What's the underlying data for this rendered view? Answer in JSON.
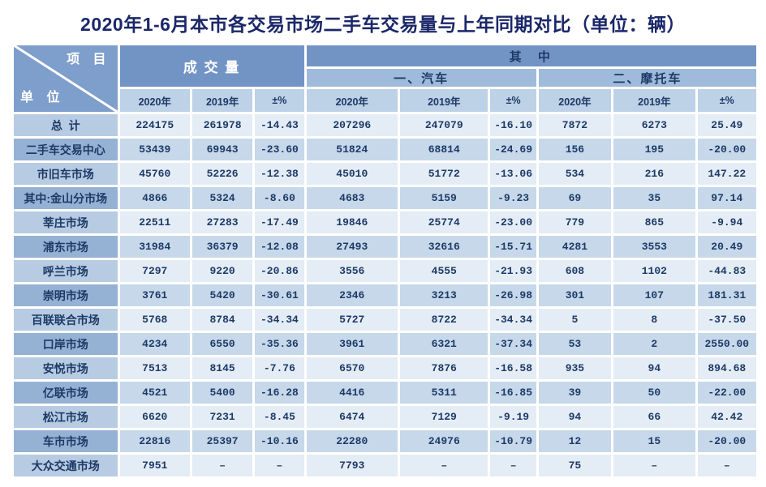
{
  "title": "2020年1-6月本市各交易市场二手车交易量与上年同期对比（单位：辆）",
  "colors": {
    "title_text": "#1b2769",
    "cell_text": "#1d3a66",
    "band_dark": "#7294c4",
    "band_mid": "#9fbada",
    "band_light": "#bdd1e7",
    "corner_bg": "#7e9ecb",
    "label_light": "#b7cbe3",
    "label_dark": "#95b2d5",
    "cell_light": "#e4ecf5",
    "cell_mid": "#c6d8ea",
    "gridline": "#ffffff"
  },
  "table": {
    "corner": {
      "top_right": "项 目",
      "bottom_left": "单 位"
    },
    "group_headers": {
      "volume": "成 交 量",
      "of_which": "其  中",
      "cars": "一、汽车",
      "motorcycles": "二、摩托车"
    },
    "year_headers": [
      "2020年",
      "2019年",
      "±%",
      "2020年",
      "2019年",
      "±%",
      "2020年",
      "2019年",
      "±%"
    ],
    "rows": [
      {
        "label": "总  计",
        "values": [
          "224175",
          "261978",
          "-14.43",
          "207296",
          "247079",
          "-16.10",
          "7872",
          "6273",
          "25.49"
        ]
      },
      {
        "label": "二手车交易中心",
        "values": [
          "53439",
          "69943",
          "-23.60",
          "51824",
          "68814",
          "-24.69",
          "156",
          "195",
          "-20.00"
        ]
      },
      {
        "label": "市旧车市场",
        "values": [
          "45760",
          "52226",
          "-12.38",
          "45010",
          "51772",
          "-13.06",
          "534",
          "216",
          "147.22"
        ]
      },
      {
        "label": "其中:金山分市场",
        "values": [
          "4866",
          "5324",
          "-8.60",
          "4683",
          "5159",
          "-9.23",
          "69",
          "35",
          "97.14"
        ]
      },
      {
        "label": "莘庄市场",
        "values": [
          "22511",
          "27283",
          "-17.49",
          "19846",
          "25774",
          "-23.00",
          "779",
          "865",
          "-9.94"
        ]
      },
      {
        "label": "浦东市场",
        "values": [
          "31984",
          "36379",
          "-12.08",
          "27493",
          "32616",
          "-15.71",
          "4281",
          "3553",
          "20.49"
        ]
      },
      {
        "label": "呼兰市场",
        "values": [
          "7297",
          "9220",
          "-20.86",
          "3556",
          "4555",
          "-21.93",
          "608",
          "1102",
          "-44.83"
        ]
      },
      {
        "label": "崇明市场",
        "values": [
          "3761",
          "5420",
          "-30.61",
          "2346",
          "3213",
          "-26.98",
          "301",
          "107",
          "181.31"
        ]
      },
      {
        "label": "百联联合市场",
        "values": [
          "5768",
          "8784",
          "-34.34",
          "5727",
          "8722",
          "-34.34",
          "5",
          "8",
          "-37.50"
        ]
      },
      {
        "label": "口岸市场",
        "values": [
          "4234",
          "6550",
          "-35.36",
          "3961",
          "6321",
          "-37.34",
          "53",
          "2",
          "2550.00"
        ]
      },
      {
        "label": "安悦市场",
        "values": [
          "7513",
          "8145",
          "-7.76",
          "6570",
          "7876",
          "-16.58",
          "935",
          "94",
          "894.68"
        ]
      },
      {
        "label": "亿联市场",
        "values": [
          "4521",
          "5400",
          "-16.28",
          "4416",
          "5311",
          "-16.85",
          "39",
          "50",
          "-22.00"
        ]
      },
      {
        "label": "松江市场",
        "values": [
          "6620",
          "7231",
          "-8.45",
          "6474",
          "7129",
          "-9.19",
          "94",
          "66",
          "42.42"
        ]
      },
      {
        "label": "车市市场",
        "values": [
          "22816",
          "25397",
          "-10.16",
          "22280",
          "24976",
          "-10.79",
          "12",
          "15",
          "-20.00"
        ]
      },
      {
        "label": "大众交通市场",
        "values": [
          "7951",
          "–",
          "–",
          "7793",
          "–",
          "–",
          "75",
          "–",
          "–"
        ]
      }
    ]
  }
}
